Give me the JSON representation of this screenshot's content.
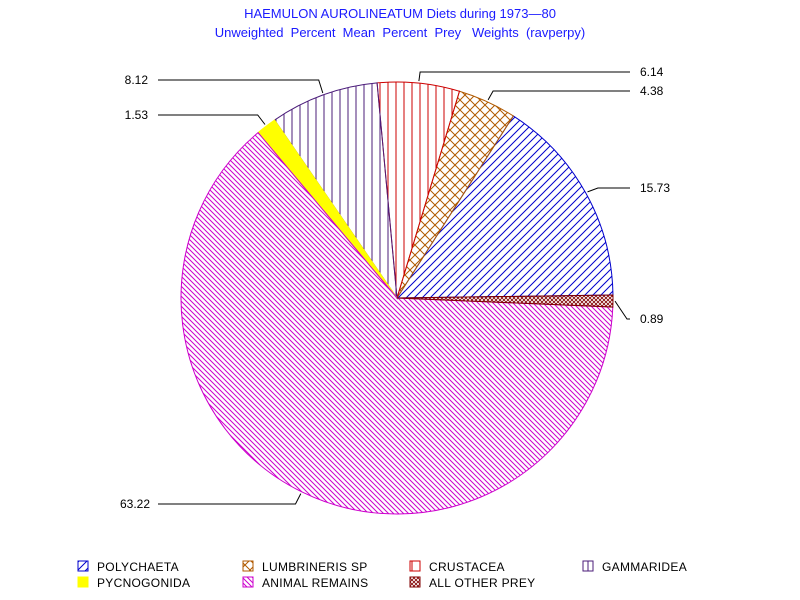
{
  "chart_data": {
    "type": "pie",
    "title": "HAEMULON AUROLINEATUM Diets during 1973—80",
    "subtitle": "Unweighted  Percent  Mean  Percent  Prey   Weights  (ravperpy)",
    "slices": [
      {
        "name": "POLYCHAETA",
        "value": 15.73,
        "label": "15.73",
        "color": "#0000cc",
        "fill": "diag-up"
      },
      {
        "name": "LUMBRINERIS SP",
        "value": 4.38,
        "label": "4.38",
        "color": "#b05a00",
        "fill": "crosshatch"
      },
      {
        "name": "CRUSTACEA",
        "value": 6.14,
        "label": "6.14",
        "color": "#cc0000",
        "fill": "vertical"
      },
      {
        "name": "GAMMARIDEA",
        "value": 8.12,
        "label": "8.12",
        "color": "#4b1c7a",
        "fill": "vertical"
      },
      {
        "name": "PYCNOGONIDA",
        "value": 1.53,
        "label": "1.53",
        "color": "#ffff00",
        "fill": "solid"
      },
      {
        "name": "ANIMAL REMAINS",
        "value": 63.22,
        "label": "63.22",
        "color": "#cc00cc",
        "fill": "diag-down"
      },
      {
        "name": "ALL OTHER PREY",
        "value": 0.89,
        "label": "0.89",
        "color": "#800000",
        "fill": "dense-cross"
      }
    ]
  },
  "legend": {
    "rows": [
      [
        "POLYCHAETA",
        "LUMBRINERIS SP",
        "CRUSTACEA",
        "GAMMARIDEA"
      ],
      [
        "PYCNOGONIDA",
        "ANIMAL REMAINS",
        "ALL OTHER PREY"
      ]
    ]
  }
}
